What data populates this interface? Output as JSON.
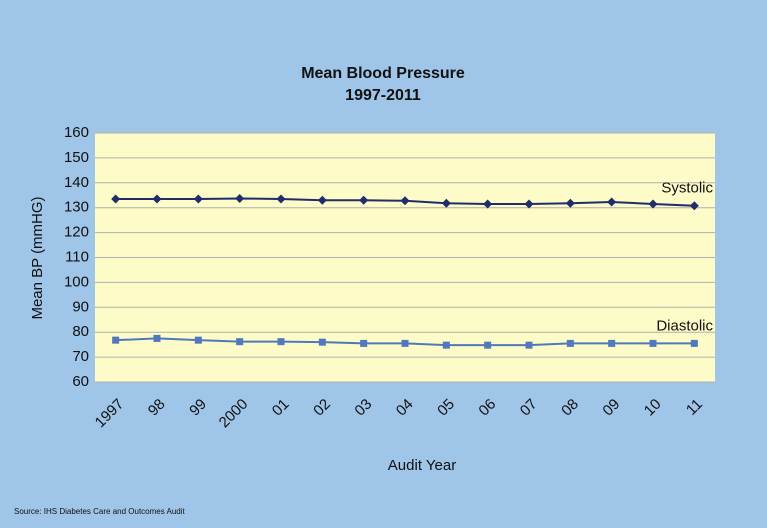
{
  "chart_data": {
    "type": "line",
    "title": "Mean Blood Pressure",
    "subtitle": "1997-2011",
    "x_label": "Audit Year",
    "y_label": "Mean BP (mmHG)",
    "source": "Source: IHS Diabetes Care and Outcomes Audit",
    "categories": [
      "1997",
      "98",
      "99",
      "2000",
      "01",
      "02",
      "03",
      "04",
      "05",
      "06",
      "07",
      "08",
      "09",
      "10",
      "11"
    ],
    "series": [
      {
        "name": "Systolic",
        "color": "#1f2d6b",
        "marker": "diamond",
        "values": [
          133.5,
          133.5,
          133.5,
          133.7,
          133.5,
          133,
          133,
          132.8,
          131.8,
          131.5,
          131.5,
          131.8,
          132.3,
          131.5,
          130.8
        ]
      },
      {
        "name": "Diastolic",
        "color": "#4f79bc",
        "marker": "square",
        "values": [
          76.8,
          77.5,
          76.8,
          76.2,
          76.2,
          76,
          75.5,
          75.5,
          74.8,
          74.8,
          74.8,
          75.5,
          75.5,
          75.5,
          75.5
        ]
      }
    ],
    "ylim": [
      60,
      160
    ],
    "yticks": [
      60,
      70,
      80,
      90,
      100,
      110,
      120,
      130,
      140,
      150,
      160
    ],
    "grid": true
  }
}
